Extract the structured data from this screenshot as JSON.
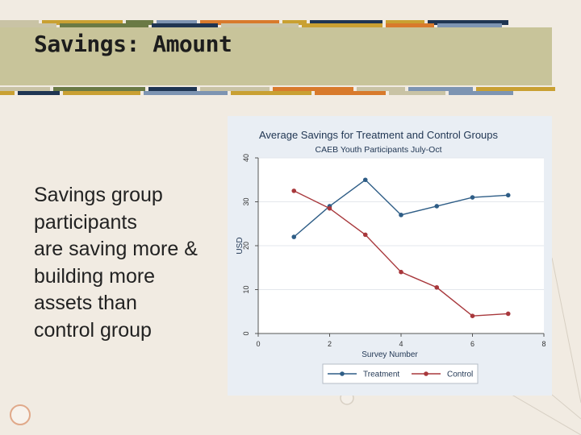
{
  "slide": {
    "title": "Savings: Amount",
    "body_lines": [
      "Savings group",
      "participants",
      "are saving more &",
      "building more",
      "assets than",
      "control group"
    ]
  },
  "colors": {
    "background": "#f1ebe2",
    "title_band": "#c8c49a",
    "treatment": "#2e5d86",
    "control": "#a8383c",
    "chart_panel": "#e9eef4"
  },
  "chart_data": {
    "type": "line",
    "title": "Average Savings for Treatment and Control Groups",
    "subtitle": "CAEB Youth Participants July-Oct",
    "xlabel": "Survey Number",
    "ylabel": "USD",
    "xlim": [
      0,
      8
    ],
    "ylim": [
      0,
      40
    ],
    "x_ticks": [
      0,
      2,
      4,
      6,
      8
    ],
    "y_ticks": [
      0,
      10,
      20,
      30,
      40
    ],
    "x": [
      1,
      2,
      3,
      4,
      5,
      6,
      7
    ],
    "series": [
      {
        "name": "Treatment",
        "color": "#2e5d86",
        "values": [
          22,
          29,
          35,
          27,
          29,
          31,
          31.5
        ]
      },
      {
        "name": "Control",
        "color": "#a8383c",
        "values": [
          32.5,
          28.5,
          22.5,
          14,
          10.5,
          4,
          4.5
        ]
      }
    ],
    "grid": "horizontal",
    "legend_position": "bottom"
  }
}
